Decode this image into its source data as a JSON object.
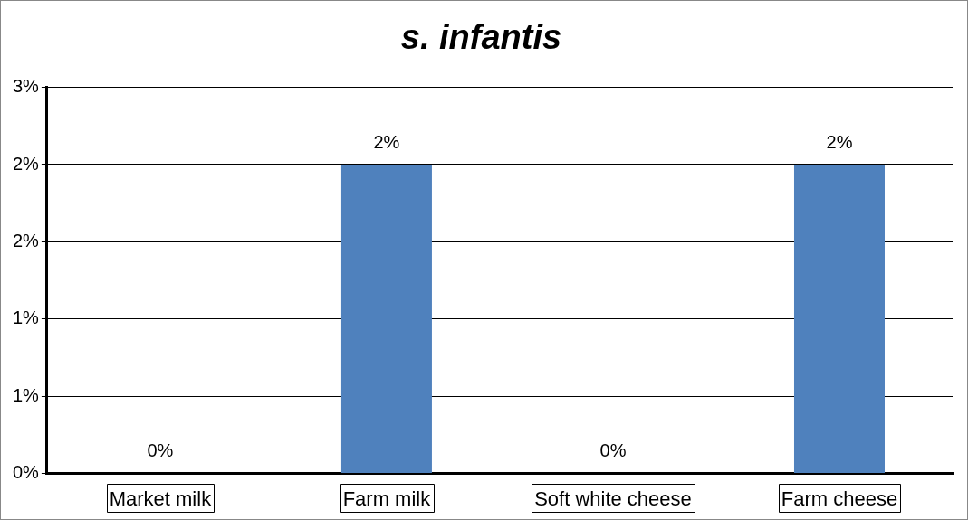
{
  "chart_data": {
    "type": "bar",
    "title": "s. infantis",
    "categories": [
      "Market milk",
      "Farm milk",
      "Soft white cheese",
      "Farm cheese"
    ],
    "values": [
      0,
      2,
      0,
      2
    ],
    "color": "#4f81bd",
    "value_labels": [
      "0%",
      "2%",
      "0%",
      "2%"
    ],
    "ylim": [
      0,
      2.5
    ],
    "yticks": [
      {
        "value": 0,
        "label": "0%"
      },
      {
        "value": 0.5,
        "label": "1%"
      },
      {
        "value": 1,
        "label": "1%"
      },
      {
        "value": 1.5,
        "label": "2%"
      },
      {
        "value": 2,
        "label": "2%"
      },
      {
        "value": 2.5,
        "label": "3%"
      }
    ],
    "grid": "y",
    "legend": false
  }
}
